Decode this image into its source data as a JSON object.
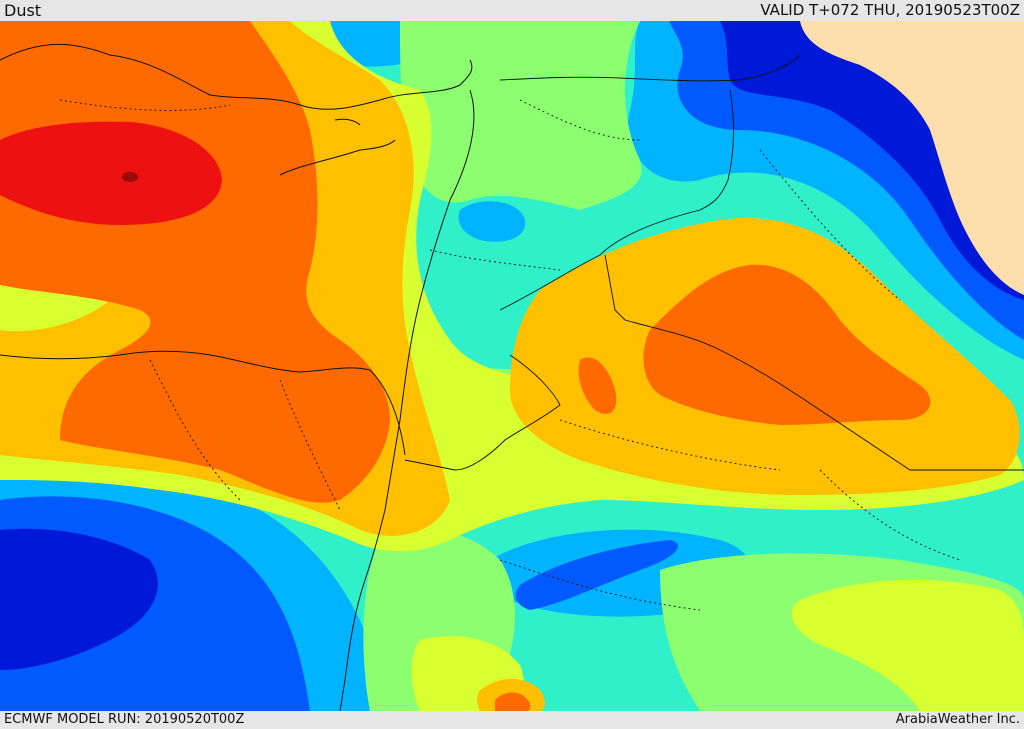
{
  "header": {
    "product": "Dust",
    "valid_time": "VALID T+072 THU, 20190523T00Z"
  },
  "footer": {
    "model_run": "ECMWF MODEL RUN: 20190520T00Z",
    "credit": "ArabiaWeather Inc."
  },
  "palette": {
    "very_high": "#ee1111",
    "high": "#ff6a00",
    "medium_high": "#ffc000",
    "medium": "#d8ff30",
    "medium_low": "#8cff70",
    "low": "#2ff0c8",
    "lower": "#00b4ff",
    "very_low": "#005aff",
    "minimal": "#0018d8",
    "land_mask": "#ffdead"
  }
}
